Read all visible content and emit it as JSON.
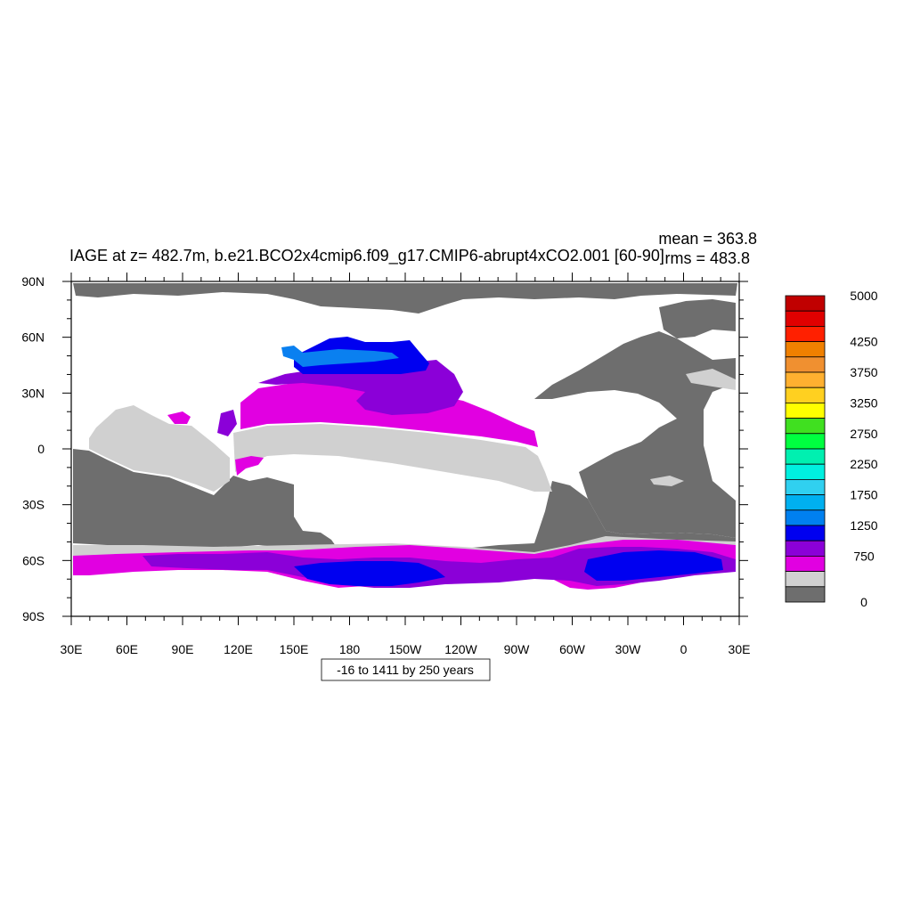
{
  "map": {
    "title": "IAGE at z= 482.7m, b.e21.BCO2x4cmip6.f09_g17.CMIP6-abrupt4xCO2.001 [60-90]",
    "stat_mean": "mean = 363.8",
    "stat_rms": "rms = 483.8",
    "subtitle_box": "-16 to 1411 by 250 years",
    "lat_ticks": [
      "90N",
      "60N",
      "30N",
      "0",
      "30S",
      "60S",
      "90S"
    ],
    "lon_ticks": [
      "30E",
      "60E",
      "90E",
      "120E",
      "150E",
      "180",
      "150W",
      "120W",
      "90W",
      "60W",
      "30W",
      "0",
      "30E"
    ],
    "colors": {
      "land": "#ffffff",
      "lt250": "#6e6e6e",
      "b250_500": "#d0d0d0",
      "b500_750": "#e100e1",
      "b750_1000": "#8b00d8",
      "b1000_1250": "#0000f0",
      "b1250_1500": "#0a80f0"
    }
  },
  "colorbar": {
    "labels": [
      "5000",
      "4250",
      "3750",
      "3250",
      "2750",
      "2250",
      "1750",
      "1250",
      "750",
      "0"
    ],
    "colors": [
      "#c00000",
      "#e00000",
      "#ff2000",
      "#f08000",
      "#f09030",
      "#ffb030",
      "#ffd020",
      "#ffff00",
      "#40e020",
      "#00ff40",
      "#00f0b0",
      "#00f0e0",
      "#30d0f0",
      "#00b0f0",
      "#0080f0",
      "#0000f0",
      "#8b00d8",
      "#e100e1",
      "#d0d0d0",
      "#6e6e6e"
    ]
  }
}
